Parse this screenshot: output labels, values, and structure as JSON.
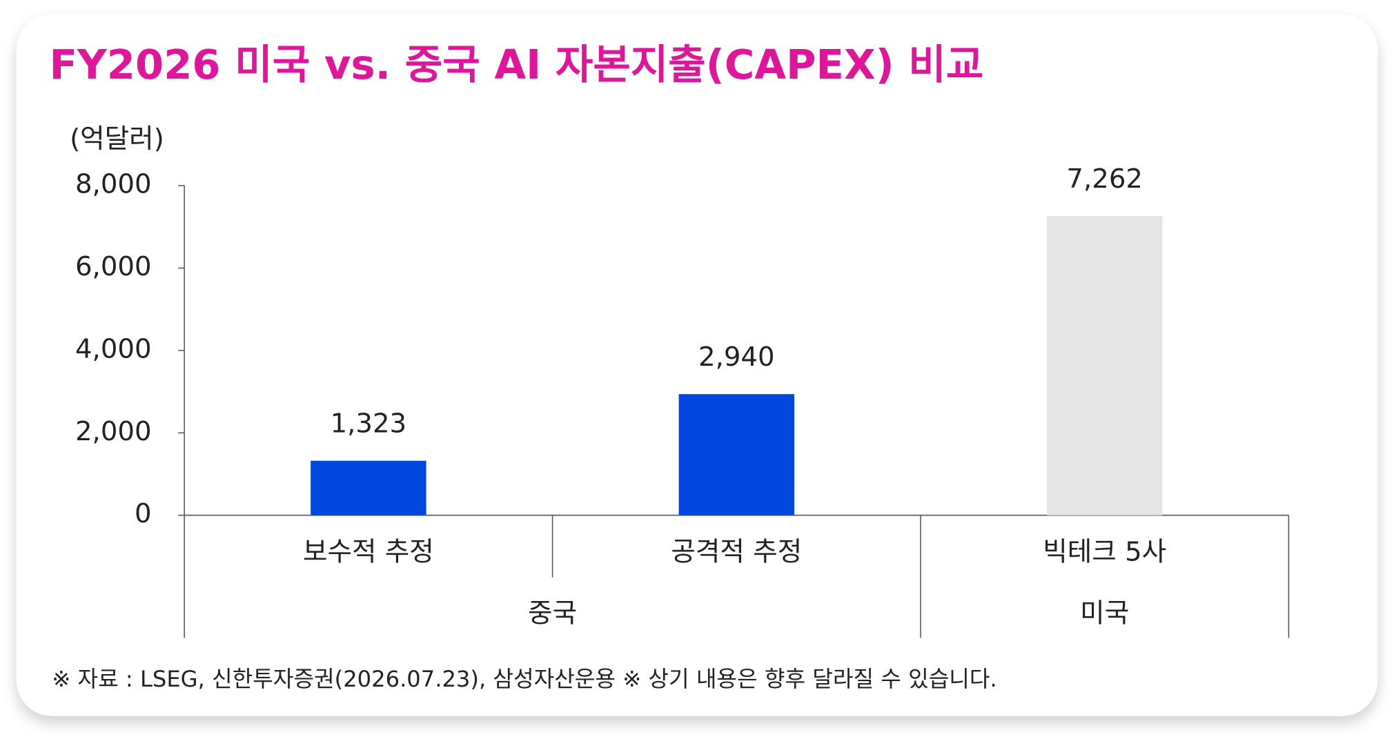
{
  "chart_data": {
    "type": "bar",
    "title": "FY2026 미국 vs. 중국 AI 자본지출(CAPEX) 비교",
    "y_label": "(억달러)",
    "categories": [
      "보수적 추정",
      "공격적 추정",
      "빅테크 5사"
    ],
    "category_groups": [
      "중국",
      "중국",
      "미국"
    ],
    "values": [
      1323,
      2940,
      7262
    ],
    "value_labels": [
      "1,323",
      "2,940",
      "7,262"
    ],
    "colors": [
      "#0047e0",
      "#0047e0",
      "#e5e5e5"
    ],
    "title_color": "#e0169a",
    "ylim": [
      0,
      8000
    ],
    "yticks": [
      0,
      {
        "value": 2000,
        "label": "2,000"
      },
      {
        "value": 4000,
        "label": "4,000"
      },
      {
        "value": 6000,
        "label": "6,000"
      },
      {
        "value": 8000,
        "label": "8,000"
      }
    ],
    "grid": false,
    "note": "※ 자료 : LSEG, 신한투자증권(2026.07.23), 삼성자산운용 ※ 상기 내용은 향후 달라질 수 있습니다."
  }
}
